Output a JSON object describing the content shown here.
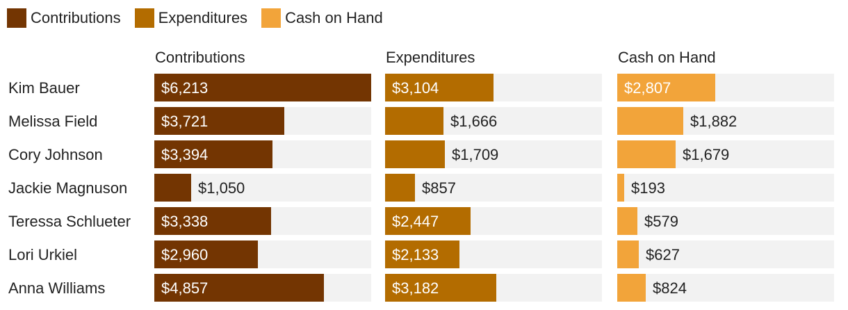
{
  "chart_data": {
    "type": "bar",
    "orientation": "horizontal",
    "layout": "small-multiples",
    "categories": [
      "Kim Bauer",
      "Melissa Field",
      "Cory Johnson",
      "Jackie Magnuson",
      "Teressa Schlueter",
      "Lori Urkiel",
      "Anna Williams"
    ],
    "series": [
      {
        "name": "Contributions",
        "color": "#733502",
        "values": [
          6213,
          3721,
          3394,
          1050,
          3338,
          2960,
          4857
        ],
        "labels": [
          "$6,213",
          "$3,721",
          "$3,394",
          "$1,050",
          "$3,338",
          "$2,960",
          "$4,857"
        ]
      },
      {
        "name": "Expenditures",
        "color": "#b36c00",
        "values": [
          3104,
          1666,
          1709,
          857,
          2447,
          2133,
          3182
        ],
        "labels": [
          "$3,104",
          "$1,666",
          "$1,709",
          "$857",
          "$2,447",
          "$2,133",
          "$3,182"
        ]
      },
      {
        "name": "Cash on Hand",
        "color": "#f2a43a",
        "values": [
          2807,
          1882,
          1679,
          193,
          579,
          627,
          824
        ],
        "labels": [
          "$2,807",
          "$1,882",
          "$1,679",
          "$193",
          "$579",
          "$627",
          "$824"
        ]
      }
    ],
    "xlim": [
      0,
      6213
    ],
    "legend_position": "top-left",
    "grid": false,
    "track_color": "#f2f2f2"
  }
}
